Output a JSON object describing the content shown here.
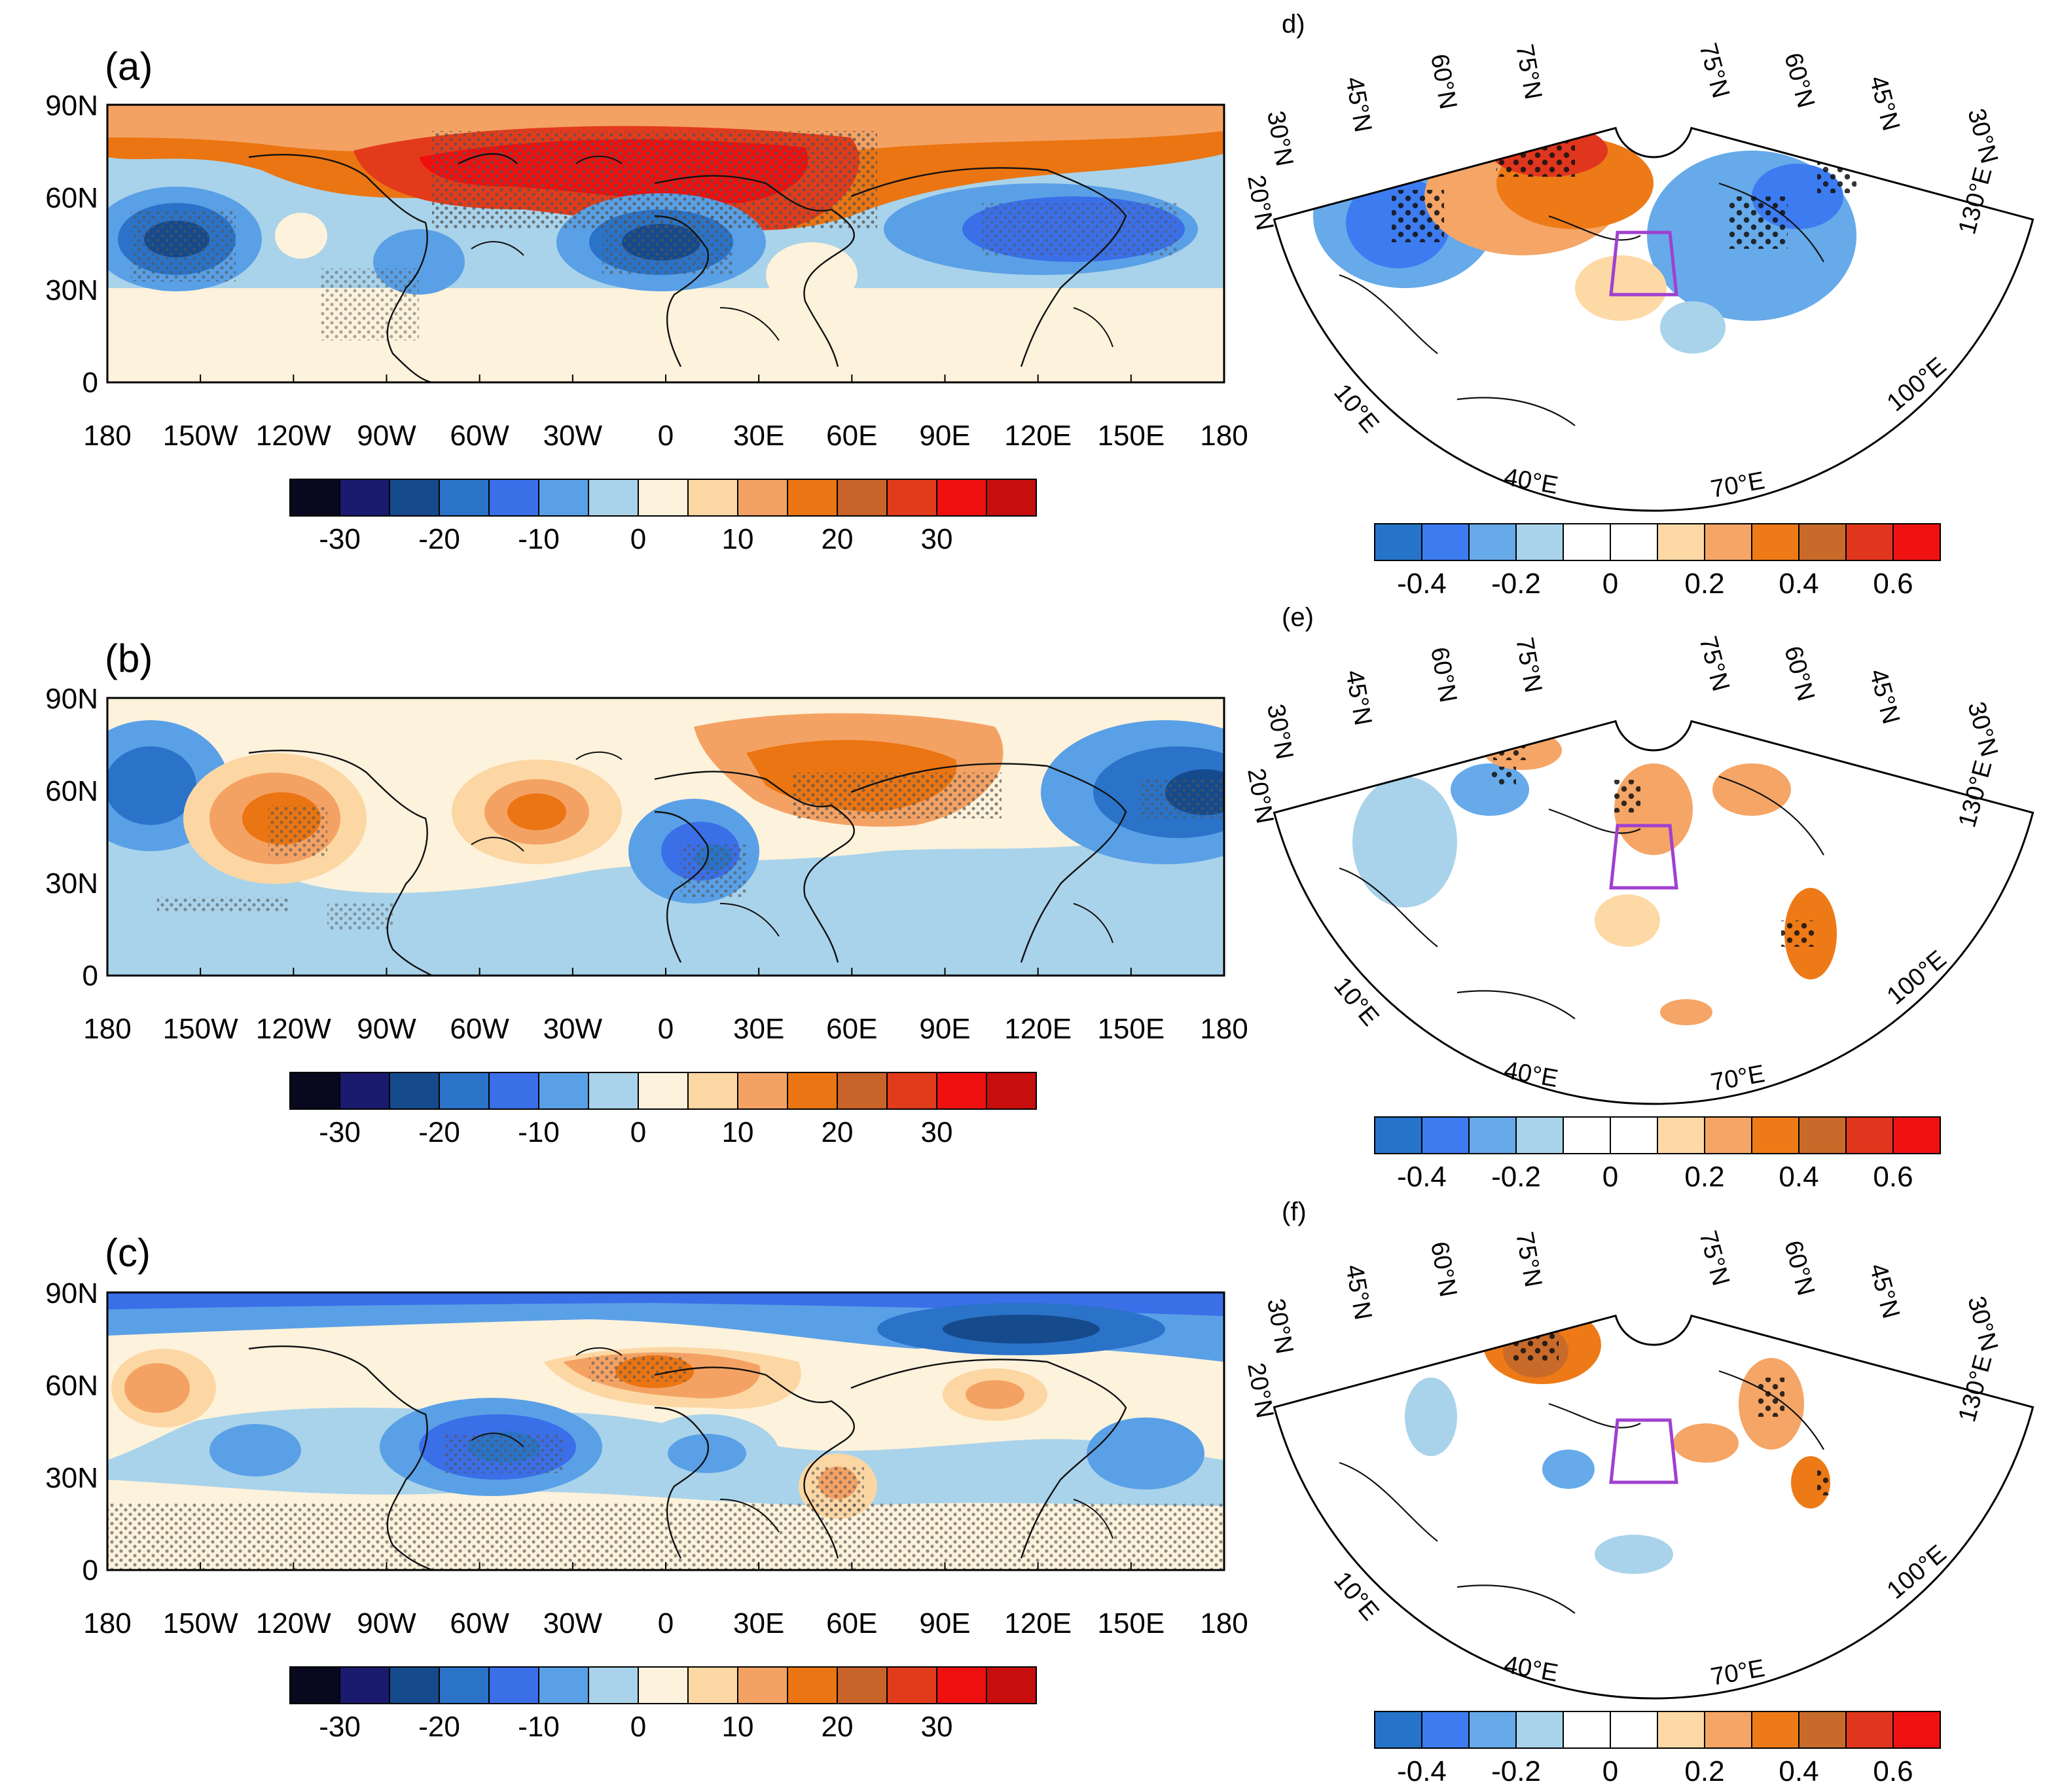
{
  "panels": [
    {
      "id": "a",
      "label": "(a)",
      "y_ticks": [
        "90N",
        "60N",
        "30N",
        "0"
      ],
      "x_ticks": [
        "180",
        "150W",
        "120W",
        "90W",
        "60W",
        "30W",
        "0",
        "30E",
        "60E",
        "90E",
        "120E",
        "150E",
        "180"
      ],
      "colorbar": {
        "colors": [
          "#08081e",
          "#1a1a6e",
          "#154a8c",
          "#2a73c9",
          "#3a6fe8",
          "#5aa0e6",
          "#a9d3ea",
          "#fdf2dc",
          "#fcd7a3",
          "#f4a264",
          "#ea7512",
          "#c8632a",
          "#e23b1b",
          "#ee0f0f",
          "#c80d0d"
        ],
        "labels": [
          "-30",
          "-20",
          "-10",
          "0",
          "10",
          "20",
          "30"
        ]
      }
    },
    {
      "id": "b",
      "label": "(b)",
      "y_ticks": [
        "90N",
        "60N",
        "30N",
        "0"
      ],
      "x_ticks": [
        "180",
        "150W",
        "120W",
        "90W",
        "60W",
        "30W",
        "0",
        "30E",
        "60E",
        "90E",
        "120E",
        "150E",
        "180"
      ],
      "colorbar": {
        "colors": [
          "#08081e",
          "#1a1a6e",
          "#154a8c",
          "#2a73c9",
          "#3a6fe8",
          "#5aa0e6",
          "#a9d3ea",
          "#fdf2dc",
          "#fcd7a3",
          "#f4a264",
          "#ea7512",
          "#c8632a",
          "#e23b1b",
          "#ee0f0f",
          "#c80d0d"
        ],
        "labels": [
          "-30",
          "-20",
          "-10",
          "0",
          "10",
          "20",
          "30"
        ]
      }
    },
    {
      "id": "c",
      "label": "(c)",
      "y_ticks": [
        "90N",
        "60N",
        "30N",
        "0"
      ],
      "x_ticks": [
        "180",
        "150W",
        "120W",
        "90W",
        "60W",
        "30W",
        "0",
        "30E",
        "60E",
        "90E",
        "120E",
        "150E",
        "180"
      ],
      "colorbar": {
        "colors": [
          "#08081e",
          "#1a1a6e",
          "#154a8c",
          "#2a73c9",
          "#3a6fe8",
          "#5aa0e6",
          "#a9d3ea",
          "#fdf2dc",
          "#fcd7a3",
          "#f4a264",
          "#ea7512",
          "#c8632a",
          "#e23b1b",
          "#ee0f0f",
          "#c80d0d"
        ],
        "labels": [
          "-30",
          "-20",
          "-10",
          "0",
          "10",
          "20",
          "30"
        ]
      }
    }
  ],
  "polar_panels": [
    {
      "id": "d",
      "label": "d)",
      "lat_labels_left": [
        "30°N",
        "45°N",
        "60°N",
        "75°N"
      ],
      "lat_labels_right": [
        "75°N",
        "60°N",
        "45°N",
        "30°N"
      ],
      "lat_label_upper_left": "20°N",
      "lon_labels": [
        "10°E",
        "40°E",
        "70°E",
        "100°E",
        "130°E"
      ],
      "colorbar": {
        "colors": [
          "#2574c9",
          "#3d7cf0",
          "#66aaea",
          "#a9d3ea",
          "#ffffff",
          "#ffffff",
          "#fdd9a6",
          "#f5a566",
          "#ed7a17",
          "#c86a2a",
          "#e0361d",
          "#f01111"
        ],
        "labels": [
          "-0.4",
          "-0.2",
          "0",
          "0.2",
          "0.4",
          "0.6"
        ]
      }
    },
    {
      "id": "e",
      "label": "(e)",
      "lat_labels_left": [
        "30°N",
        "45°N",
        "60°N",
        "75°N"
      ],
      "lat_labels_right": [
        "75°N",
        "60°N",
        "45°N",
        "30°N"
      ],
      "lat_label_upper_left": "20°N",
      "lon_labels": [
        "10°E",
        "40°E",
        "70°E",
        "100°E",
        "130°E"
      ],
      "colorbar": {
        "colors": [
          "#2574c9",
          "#3d7cf0",
          "#66aaea",
          "#a9d3ea",
          "#ffffff",
          "#ffffff",
          "#fdd9a6",
          "#f5a566",
          "#ed7a17",
          "#c86a2a",
          "#e0361d",
          "#f01111"
        ],
        "labels": [
          "-0.4",
          "-0.2",
          "0",
          "0.2",
          "0.4",
          "0.6"
        ]
      }
    },
    {
      "id": "f",
      "label": "(f)",
      "lat_labels_left": [
        "30°N",
        "45°N",
        "60°N",
        "75°N"
      ],
      "lat_labels_right": [
        "75°N",
        "60°N",
        "45°N",
        "30°N"
      ],
      "lat_label_upper_left": "20°N",
      "lon_labels": [
        "10°E",
        "40°E",
        "70°E",
        "100°E",
        "130°E"
      ],
      "colorbar": {
        "colors": [
          "#2574c9",
          "#3d7cf0",
          "#66aaea",
          "#a9d3ea",
          "#ffffff",
          "#ffffff",
          "#fdd9a6",
          "#f5a566",
          "#ed7a17",
          "#c86a2a",
          "#e0361d",
          "#f01111"
        ],
        "labels": [
          "-0.4",
          "-0.2",
          "0",
          "0.2",
          "0.4",
          "0.6"
        ]
      }
    }
  ],
  "box_color": "#a040d0"
}
